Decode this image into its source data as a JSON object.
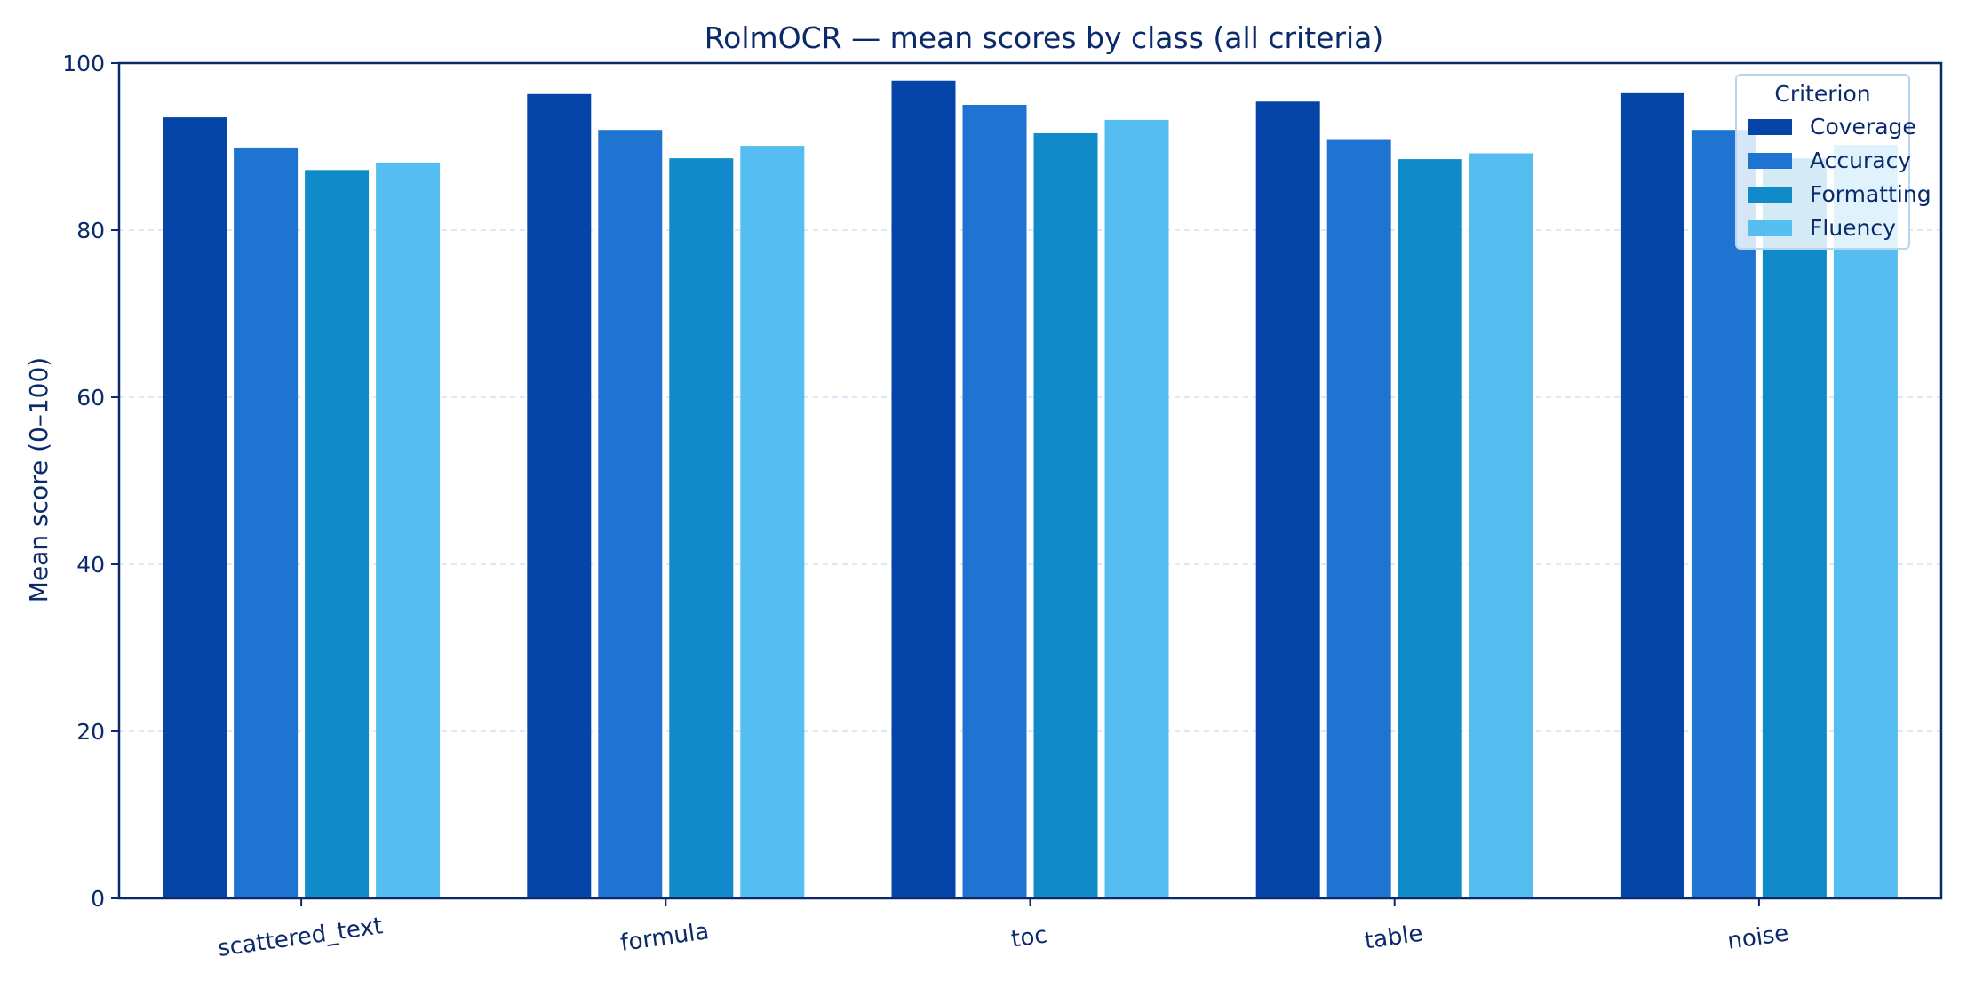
{
  "chart_data": {
    "type": "bar",
    "title": "RolmOCR — mean scores by class (all criteria)",
    "xlabel": "",
    "ylabel": "Mean score (0–100)",
    "categories": [
      "scattered_text",
      "formula",
      "toc",
      "table",
      "noise"
    ],
    "ylim": [
      0,
      100
    ],
    "yticks": [
      0,
      20,
      40,
      60,
      80,
      100
    ],
    "grid": "y-dashed",
    "legend": {
      "title": "Criterion",
      "placement": "top-right"
    },
    "series": [
      {
        "name": "Coverage",
        "color": "#0545a8",
        "values": [
          93.5,
          96.3,
          97.9,
          95.4,
          96.4
        ]
      },
      {
        "name": "Accuracy",
        "color": "#1e74d0",
        "values": [
          89.9,
          92.0,
          95.0,
          90.9,
          92.0
        ]
      },
      {
        "name": "Formatting",
        "color": "#118ac9",
        "values": [
          87.2,
          88.6,
          91.6,
          88.5,
          88.6
        ]
      },
      {
        "name": "Fluency",
        "color": "#56bdf0",
        "values": [
          88.1,
          90.1,
          93.2,
          89.2,
          90.2
        ]
      }
    ],
    "colors": {
      "axis": "#0a2a6b",
      "text": "#0a2a6b",
      "grid": "#cfe3f7"
    }
  }
}
